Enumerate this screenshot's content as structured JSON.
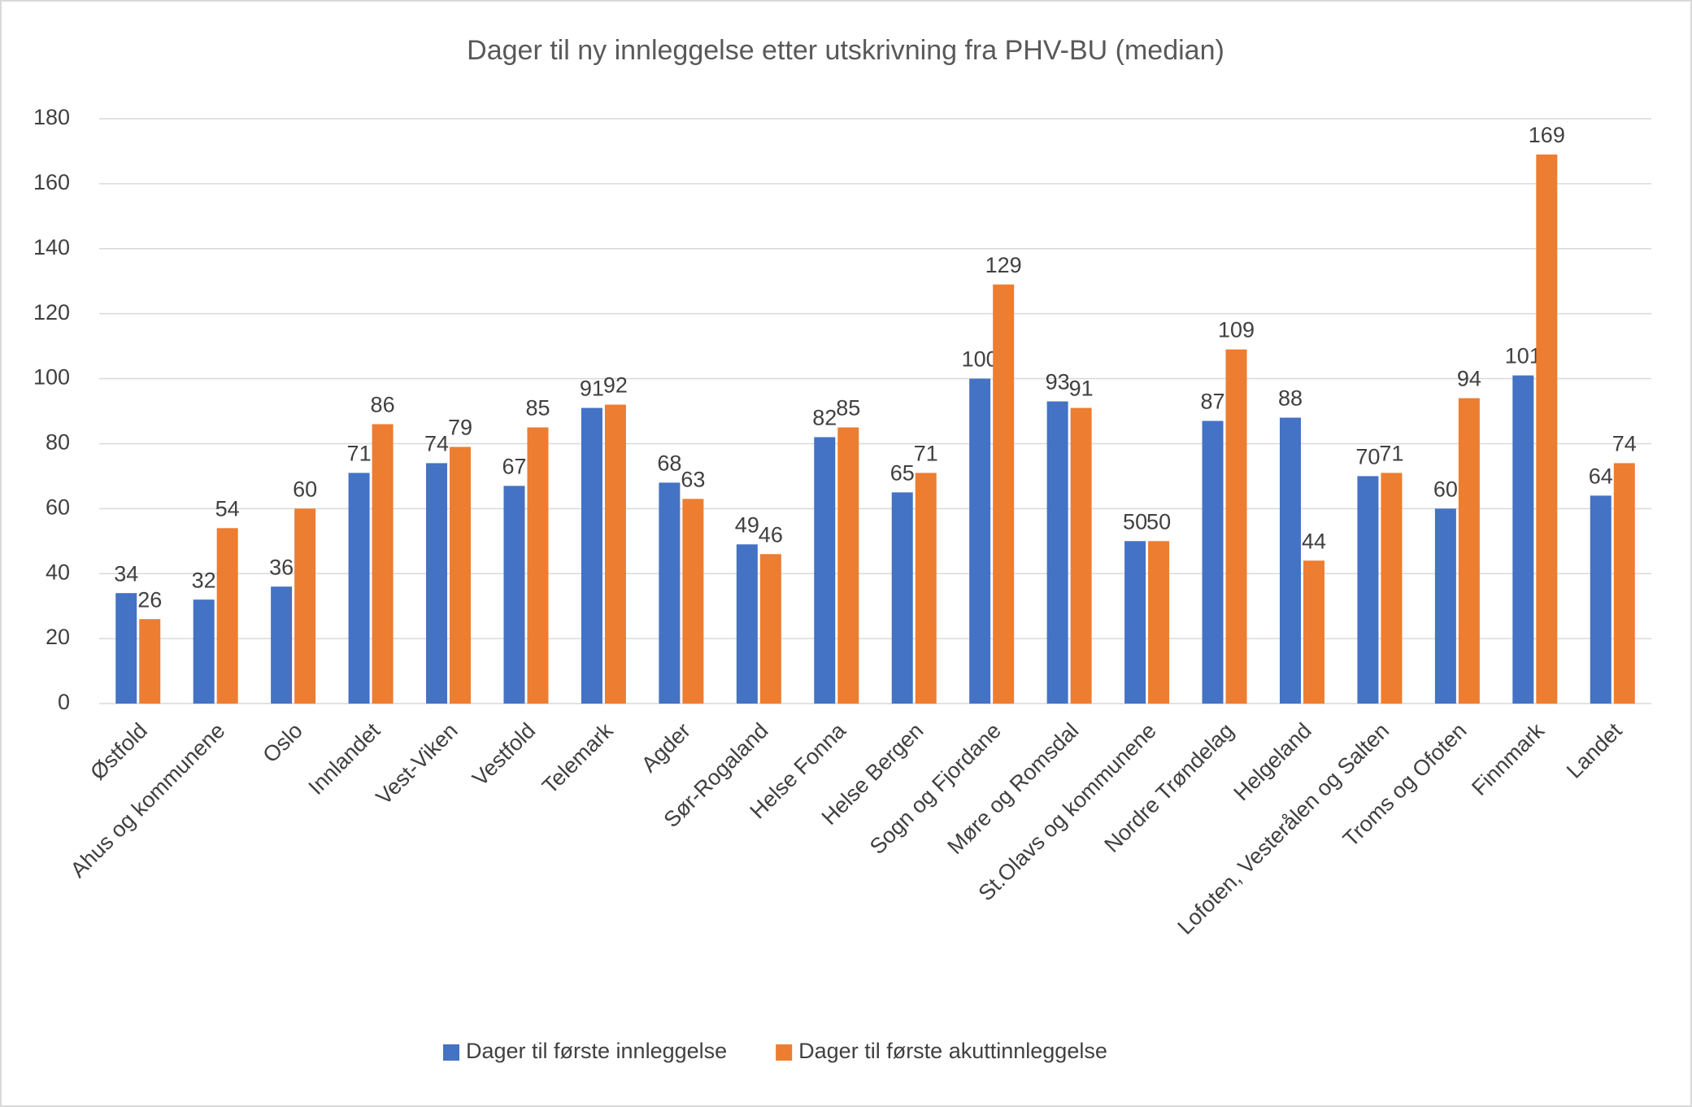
{
  "chart_data": {
    "type": "bar",
    "title": "Dager til ny innleggelse etter utskrivning fra PHV-BU (median)",
    "categories": [
      "Østfold",
      "Ahus og kommunene",
      "Oslo",
      "Innlandet",
      "Vest-Viken",
      "Vestfold",
      "Telemark",
      "Agder",
      "Sør-Rogaland",
      "Helse Fonna",
      "Helse Bergen",
      "Sogn og Fjordane",
      "Møre og Romsdal",
      "St.Olavs og kommunene",
      "Nordre Trøndelag",
      "Helgeland",
      "Lofoten, Vesterålen og Salten",
      "Troms og Ofoten",
      "Finnmark",
      "Landet"
    ],
    "series": [
      {
        "name": "Dager til første innleggelse",
        "color": "#4472c4",
        "values": [
          34,
          32,
          36,
          71,
          74,
          67,
          91,
          68,
          49,
          82,
          65,
          100,
          93,
          50,
          87,
          88,
          70,
          60,
          101,
          64
        ]
      },
      {
        "name": "Dager til første akuttinnleggelse",
        "color": "#ed7d31",
        "values": [
          26,
          54,
          60,
          86,
          79,
          85,
          92,
          63,
          46,
          85,
          71,
          129,
          91,
          50,
          109,
          44,
          71,
          94,
          169,
          74
        ]
      }
    ],
    "ylim": [
      0,
      180
    ],
    "yticks": [
      0,
      20,
      40,
      60,
      80,
      100,
      120,
      140,
      160,
      180
    ],
    "grid": true,
    "legend": "bottom"
  }
}
